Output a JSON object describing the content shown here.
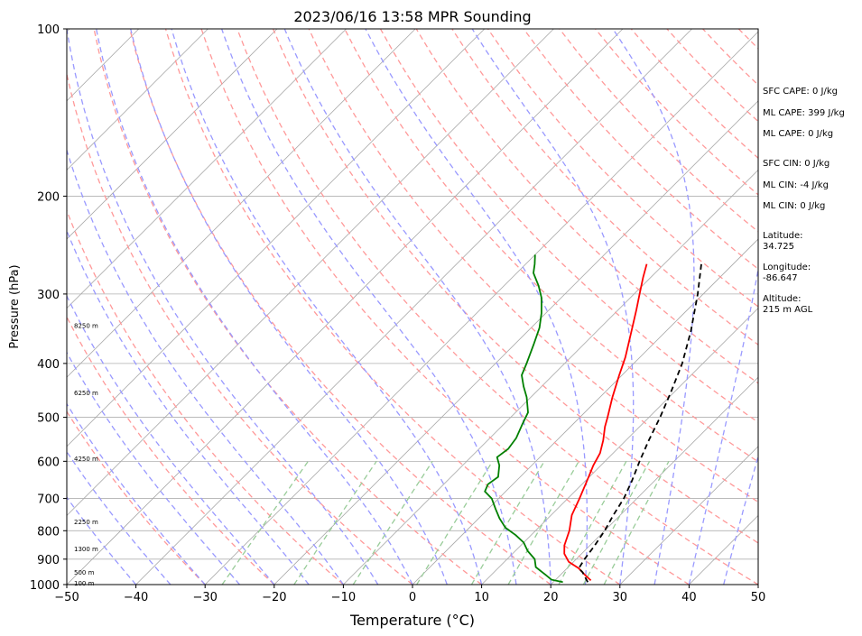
{
  "chart_data": {
    "type": "line",
    "title": "2023/06/16 13:58 MPR Sounding",
    "xlabel": "Temperature (°C)",
    "ylabel": "Pressure (hPa)",
    "xlim": [
      -50,
      50
    ],
    "ylim": [
      1000,
      100
    ],
    "y_scale": "log",
    "x_ticks": [
      "−50",
      "−40",
      "−30",
      "−20",
      "−10",
      "0",
      "10",
      "20",
      "30",
      "40",
      "50"
    ],
    "x_tick_values": [
      -50,
      -40,
      -30,
      -20,
      -10,
      0,
      10,
      20,
      30,
      40,
      50
    ],
    "y_ticks": [
      "100",
      "200",
      "300",
      "400",
      "500",
      "600",
      "700",
      "800",
      "900",
      "1000"
    ],
    "y_tick_values": [
      100,
      200,
      300,
      400,
      500,
      600,
      700,
      800,
      900,
      1000
    ],
    "grid": true,
    "series": [
      {
        "color": "#ff0000",
        "style": "solid",
        "points": [
          [
            983,
            25.2
          ],
          [
            960,
            23.5
          ],
          [
            935,
            21.7
          ],
          [
            910,
            19.3
          ],
          [
            880,
            17.5
          ],
          [
            850,
            16.3
          ],
          [
            800,
            14.9
          ],
          [
            750,
            13.0
          ],
          [
            700,
            11.7
          ],
          [
            650,
            10.2
          ],
          [
            610,
            8.9
          ],
          [
            580,
            8.1
          ],
          [
            550,
            6.7
          ],
          [
            520,
            5.0
          ],
          [
            500,
            4.0
          ],
          [
            460,
            1.8
          ],
          [
            420,
            -0.4
          ],
          [
            390,
            -2.1
          ],
          [
            350,
            -5.0
          ],
          [
            320,
            -7.4
          ],
          [
            300,
            -9.2
          ],
          [
            280,
            -11.1
          ],
          [
            265,
            -12.5
          ]
        ]
      },
      {
        "color": "#008000",
        "style": "solid",
        "points": [
          [
            990,
            21.4
          ],
          [
            980,
            19.4
          ],
          [
            960,
            17.8
          ],
          [
            930,
            15.3
          ],
          [
            900,
            14.0
          ],
          [
            870,
            11.8
          ],
          [
            840,
            10.0
          ],
          [
            815,
            7.8
          ],
          [
            790,
            5.2
          ],
          [
            760,
            3.0
          ],
          [
            730,
            1.0
          ],
          [
            700,
            -1.0
          ],
          [
            680,
            -3.0
          ],
          [
            660,
            -3.6
          ],
          [
            640,
            -3.2
          ],
          [
            610,
            -4.7
          ],
          [
            590,
            -6.2
          ],
          [
            570,
            -5.8
          ],
          [
            545,
            -6.2
          ],
          [
            515,
            -7.3
          ],
          [
            490,
            -8.2
          ],
          [
            460,
            -10.6
          ],
          [
            440,
            -12.6
          ],
          [
            420,
            -14.5
          ],
          [
            400,
            -15.5
          ],
          [
            370,
            -17.2
          ],
          [
            345,
            -18.8
          ],
          [
            325,
            -20.6
          ],
          [
            305,
            -22.8
          ],
          [
            290,
            -25.0
          ],
          [
            275,
            -27.6
          ],
          [
            265,
            -28.7
          ],
          [
            255,
            -30.0
          ]
        ]
      },
      {
        "color": "#000000",
        "style": "dashed",
        "points": [
          [
            990,
            25.0
          ],
          [
            950,
            22.8
          ],
          [
            935,
            21.7
          ],
          [
            900,
            21.2
          ],
          [
            850,
            20.7
          ],
          [
            800,
            20.0
          ],
          [
            750,
            19.0
          ],
          [
            700,
            18.1
          ],
          [
            650,
            16.7
          ],
          [
            600,
            15.0
          ],
          [
            550,
            13.3
          ],
          [
            500,
            11.6
          ],
          [
            450,
            9.5
          ],
          [
            400,
            7.0
          ],
          [
            350,
            3.6
          ],
          [
            300,
            -0.8
          ],
          [
            265,
            -4.6
          ]
        ]
      }
    ],
    "height_labels": [
      {
        "text": "100 m",
        "p": 996
      },
      {
        "text": "500 m",
        "p": 953
      },
      {
        "text": "1300 m",
        "p": 865
      },
      {
        "text": "2250 m",
        "p": 772
      },
      {
        "text": "4250 m",
        "p": 595
      },
      {
        "text": "6250 m",
        "p": 453
      },
      {
        "text": "8250 m",
        "p": 343
      }
    ]
  },
  "side_panel": {
    "sfc_cape": "SFC CAPE: 0 J/kg",
    "ml_cape_1": "ML CAPE: 399 J/kg",
    "ml_cape_2": "ML CAPE: 0 J/kg",
    "sfc_cin": "SFC CIN: 0 J/kg",
    "ml_cin_1": "ML CIN: -4 J/kg",
    "ml_cin_2": "ML CIN: 0 J/kg",
    "latitude_label": "Latitude:",
    "latitude_value": "34.725",
    "longitude_label": "Longitude:",
    "longitude_value": "-86.647",
    "altitude_label": "Altitude:",
    "altitude_value": "215 m AGL"
  },
  "colors": {
    "temperature": "#ff0000",
    "dewpoint": "#008000",
    "parcel": "#000000",
    "dry_adiabats": "#ff9999",
    "moist_adiabats": "#9999ff",
    "mixing_ratio": "#99cc99",
    "isotherms": "#a8a8a8"
  }
}
